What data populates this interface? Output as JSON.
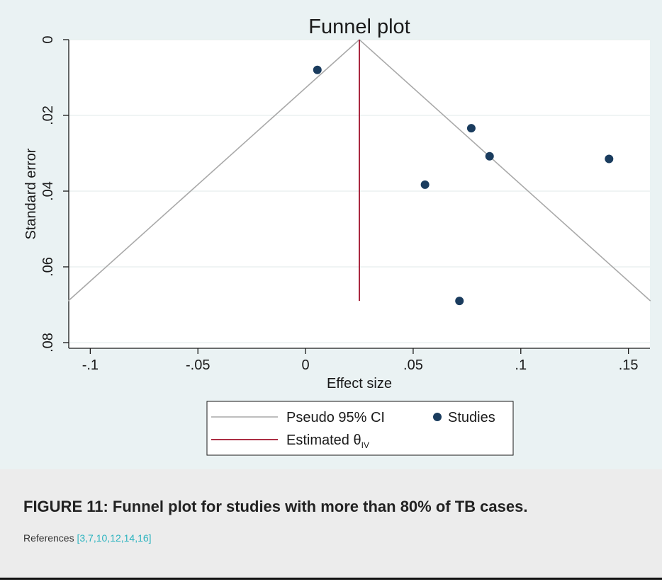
{
  "chart_data": {
    "type": "scatter",
    "title": "Funnel plot",
    "xlabel": "Effect size",
    "ylabel": "Standard error",
    "xlim": [
      -0.11,
      0.16
    ],
    "ylim": [
      0,
      0.0815
    ],
    "y_inverted": true,
    "x_ticks": [
      -0.1,
      -0.05,
      0,
      0.05,
      0.1,
      0.15
    ],
    "x_tick_labels": [
      "-.1",
      "-.05",
      "0",
      ".05",
      ".1",
      ".15"
    ],
    "y_ticks": [
      0,
      0.02,
      0.04,
      0.06,
      0.08
    ],
    "y_tick_labels": [
      "0",
      ".02",
      ".04",
      ".06",
      ".08"
    ],
    "grid": true,
    "estimate": 0.025,
    "max_se": 0.069,
    "ci_level": 0.95,
    "series": [
      {
        "name": "Studies",
        "color": "#1a3c5e",
        "points": [
          {
            "x": 0.0055,
            "y": 0.008
          },
          {
            "x": 0.077,
            "y": 0.0234
          },
          {
            "x": 0.0855,
            "y": 0.0308
          },
          {
            "x": 0.141,
            "y": 0.0315
          },
          {
            "x": 0.0555,
            "y": 0.0383
          },
          {
            "x": 0.0715,
            "y": 0.069
          }
        ]
      }
    ],
    "lines": [
      {
        "name": "Pseudo 95% CI",
        "color": "#a9a9a9"
      },
      {
        "name": "Estimated",
        "subscript": "IV",
        "symbol": "θ",
        "color": "#a0102a"
      }
    ],
    "legend_position": "bottom"
  },
  "caption": {
    "title": "FIGURE 11: Funnel plot for studies with more than 80% of TB cases.",
    "refs_prefix": "References ",
    "refs_links": "[3,7,10,12,14,16]"
  }
}
